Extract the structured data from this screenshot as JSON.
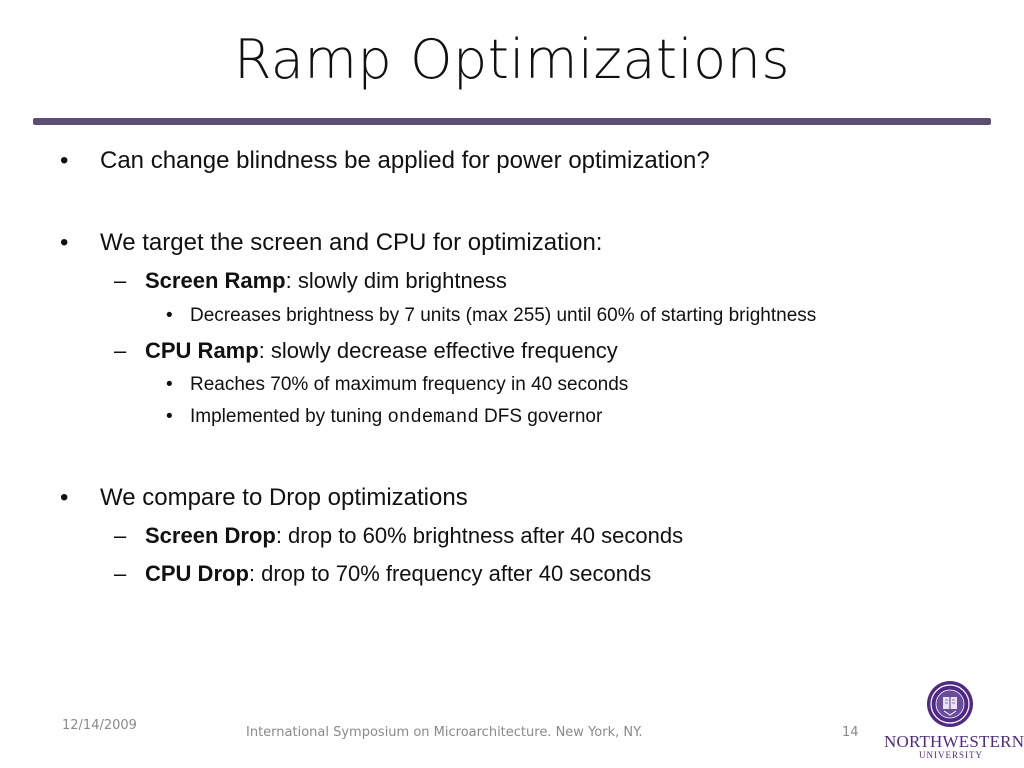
{
  "slide": {
    "title": "Ramp Optimizations",
    "bullets": [
      {
        "text": "Can change blindness be applied for power optimization?"
      },
      {
        "text": "We target the screen and CPU for optimization:",
        "subitems": [
          {
            "bold": "Screen Ramp",
            "text": ": slowly dim brightness",
            "subitems": [
              {
                "text": "Decreases brightness by 7 units (max 255) until 60% of starting brightness"
              }
            ]
          },
          {
            "bold": "CPU Ramp",
            "text": ": slowly decrease effective frequency",
            "subitems": [
              {
                "text": "Reaches 70% of maximum frequency in 40 seconds"
              },
              {
                "prefix": "Implemented by tuning ",
                "code": "ondemand",
                "suffix": " DFS governor"
              }
            ]
          }
        ]
      },
      {
        "text": "We compare to Drop optimizations",
        "subitems": [
          {
            "bold": "Screen Drop",
            "text": ": drop to 60% brightness after 40 seconds"
          },
          {
            "bold": "CPU Drop",
            "text": ": drop to 70% frequency after 40 seconds"
          }
        ]
      }
    ]
  },
  "markers": {
    "level1": "•",
    "level2": "–",
    "level3": "•"
  },
  "footer": {
    "date": "12/14/2009",
    "text": "International Symposium on Microarchitecture.  New York, NY.",
    "page": "14"
  },
  "logo": {
    "name": "NORTHWESTERN",
    "sub": "UNIVERSITY",
    "color": "#4e2a84"
  },
  "colors": {
    "title_rule": "#5e4e74",
    "footer_text": "#8a8a8a"
  }
}
